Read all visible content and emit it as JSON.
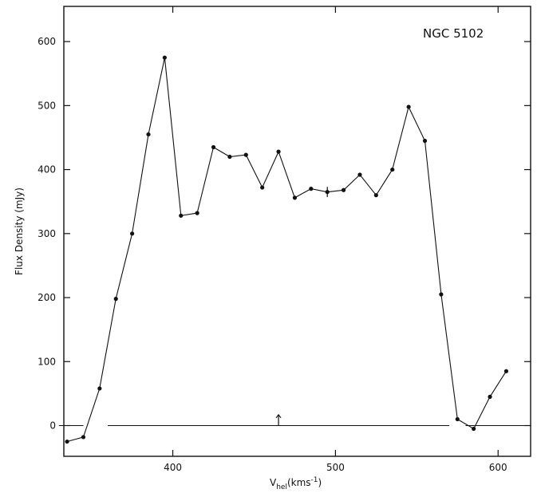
{
  "chart_data": {
    "type": "line",
    "title": "NGC 5102",
    "xlabel": "Vhel(kms-1)",
    "xlabel_parts": {
      "main": "V",
      "sub": "hel",
      "unit_pre": "(kms",
      "sup": "-1",
      "unit_post": ")"
    },
    "ylabel": "Flux Density (mJy)",
    "xlim": [
      333,
      620
    ],
    "ylim": [
      -48,
      655
    ],
    "xticks": [
      400,
      500,
      600
    ],
    "yticks": [
      0,
      100,
      200,
      300,
      400,
      500,
      600
    ],
    "grid": false,
    "series": [
      {
        "x": [
          335,
          345,
          355,
          365,
          375,
          385,
          395,
          405,
          415,
          425,
          435,
          445,
          455,
          465,
          475,
          485,
          495,
          505,
          515,
          525,
          535,
          545,
          555,
          565,
          575,
          585,
          595,
          605
        ],
        "y": [
          -25,
          -18,
          58,
          198,
          300,
          455,
          575,
          328,
          332,
          435,
          420,
          423,
          372,
          428,
          356,
          370,
          365,
          368,
          392,
          360,
          400,
          498,
          445,
          205,
          10,
          -5,
          45,
          85
        ],
        "markers": true
      }
    ],
    "error_bar": {
      "x": 495,
      "y": 365,
      "err": 8
    },
    "baseline_segments": [
      [
        330,
        345
      ],
      [
        360,
        570
      ],
      [
        580,
        620
      ]
    ],
    "arrow_annotation": {
      "x": 465,
      "y_from": 0,
      "y_to": 17
    }
  }
}
